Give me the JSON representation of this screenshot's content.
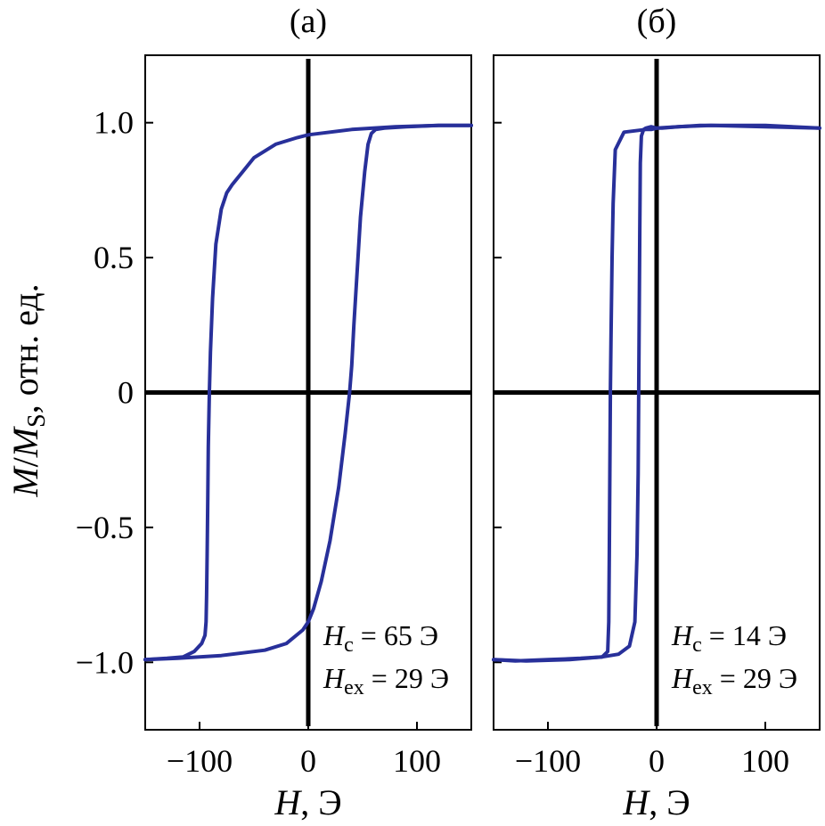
{
  "chart_data": [
    {
      "type": "line",
      "panel_label": "(a)",
      "xlabel_var": "H",
      "xlabel_unit": ", Э",
      "ylabel_var_1": "M",
      "ylabel_sep": "/",
      "ylabel_var_2": "M",
      "ylabel_sub": "S",
      "ylabel_unit": ", отн. ед.",
      "xlim": [
        -150,
        150
      ],
      "ylim": [
        -1.25,
        1.25
      ],
      "xticks": [
        -100,
        0,
        100
      ],
      "xtick_labels": [
        "−100",
        "0",
        "100"
      ],
      "yticks": [
        -1.0,
        -0.5,
        0,
        0.5,
        1.0
      ],
      "ytick_labels": [
        "−1.0",
        "−0.5",
        "0",
        "0.5",
        "1.0"
      ],
      "zero_lines": true,
      "grid": false,
      "color": "#28309a",
      "annotations": [
        {
          "var": "H",
          "sub": "c",
          "value": " = 65 Э"
        },
        {
          "var": "H",
          "sub": "ex",
          "value": " = 29 Э"
        }
      ],
      "series": [
        {
          "branch": "descending",
          "x": [
            150,
            120,
            80,
            40,
            10,
            0,
            -10,
            -30,
            -50,
            -60,
            -70,
            -75,
            -80,
            -85,
            -88,
            -90,
            -91,
            -92,
            -92.5,
            -93,
            -93.5,
            -94,
            -95,
            -98,
            -105,
            -115,
            -130,
            -150
          ],
          "y": [
            0.99,
            0.99,
            0.985,
            0.975,
            0.96,
            0.955,
            0.945,
            0.92,
            0.87,
            0.82,
            0.77,
            0.74,
            0.68,
            0.55,
            0.35,
            0.15,
            0.0,
            -0.2,
            -0.4,
            -0.6,
            -0.75,
            -0.85,
            -0.9,
            -0.93,
            -0.96,
            -0.98,
            -0.985,
            -0.99
          ]
        },
        {
          "branch": "ascending",
          "x": [
            -150,
            -120,
            -80,
            -40,
            -20,
            -5,
            0,
            5,
            12,
            20,
            28,
            34,
            38,
            40,
            42,
            45,
            48,
            52,
            55,
            58,
            62,
            70,
            90,
            120,
            150
          ],
          "y": [
            -0.99,
            -0.985,
            -0.975,
            -0.955,
            -0.93,
            -0.88,
            -0.85,
            -0.8,
            -0.7,
            -0.55,
            -0.35,
            -0.15,
            0.0,
            0.1,
            0.25,
            0.45,
            0.65,
            0.82,
            0.92,
            0.96,
            0.975,
            0.98,
            0.985,
            0.99,
            0.99
          ]
        }
      ]
    },
    {
      "type": "line",
      "panel_label": "(б)",
      "xlabel_var": "H",
      "xlabel_unit": ", Э",
      "xlim": [
        -150,
        150
      ],
      "ylim": [
        -1.25,
        1.25
      ],
      "xticks": [
        -100,
        0,
        100
      ],
      "xtick_labels": [
        "−100",
        "0",
        "100"
      ],
      "yticks": [
        -1.0,
        -0.5,
        0,
        0.5,
        1.0
      ],
      "zero_lines": true,
      "grid": false,
      "color": "#28309a",
      "annotations": [
        {
          "var": "H",
          "sub": "c",
          "value": " = 14 Э"
        },
        {
          "var": "H",
          "sub": "ex",
          "value": " = 29 Э"
        }
      ],
      "series": [
        {
          "branch": "descending",
          "x": [
            150,
            100,
            50,
            20,
            5,
            0,
            -5,
            -10,
            -20,
            -30,
            -38,
            -40,
            -41,
            -42,
            -42.5,
            -43,
            -43.5,
            -44,
            -45,
            -50,
            -70,
            -100,
            -130,
            -150
          ],
          "y": [
            0.98,
            0.985,
            0.99,
            0.985,
            0.98,
            0.98,
            0.975,
            0.975,
            0.97,
            0.965,
            0.9,
            0.7,
            0.5,
            0.2,
            0.0,
            -0.3,
            -0.6,
            -0.85,
            -0.96,
            -0.98,
            -0.985,
            -0.99,
            -0.995,
            -0.99
          ]
        },
        {
          "branch": "ascending",
          "x": [
            -150,
            -120,
            -80,
            -50,
            -35,
            -25,
            -20,
            -18,
            -17,
            -16.5,
            -16,
            -15.5,
            -15,
            -14,
            -12,
            -10,
            -5,
            0,
            40,
            100,
            150
          ],
          "y": [
            -0.99,
            -0.995,
            -0.99,
            -0.98,
            -0.97,
            -0.94,
            -0.85,
            -0.6,
            -0.3,
            0.0,
            0.3,
            0.6,
            0.85,
            0.95,
            0.975,
            0.98,
            0.985,
            0.98,
            0.99,
            0.99,
            0.98
          ]
        }
      ]
    }
  ]
}
